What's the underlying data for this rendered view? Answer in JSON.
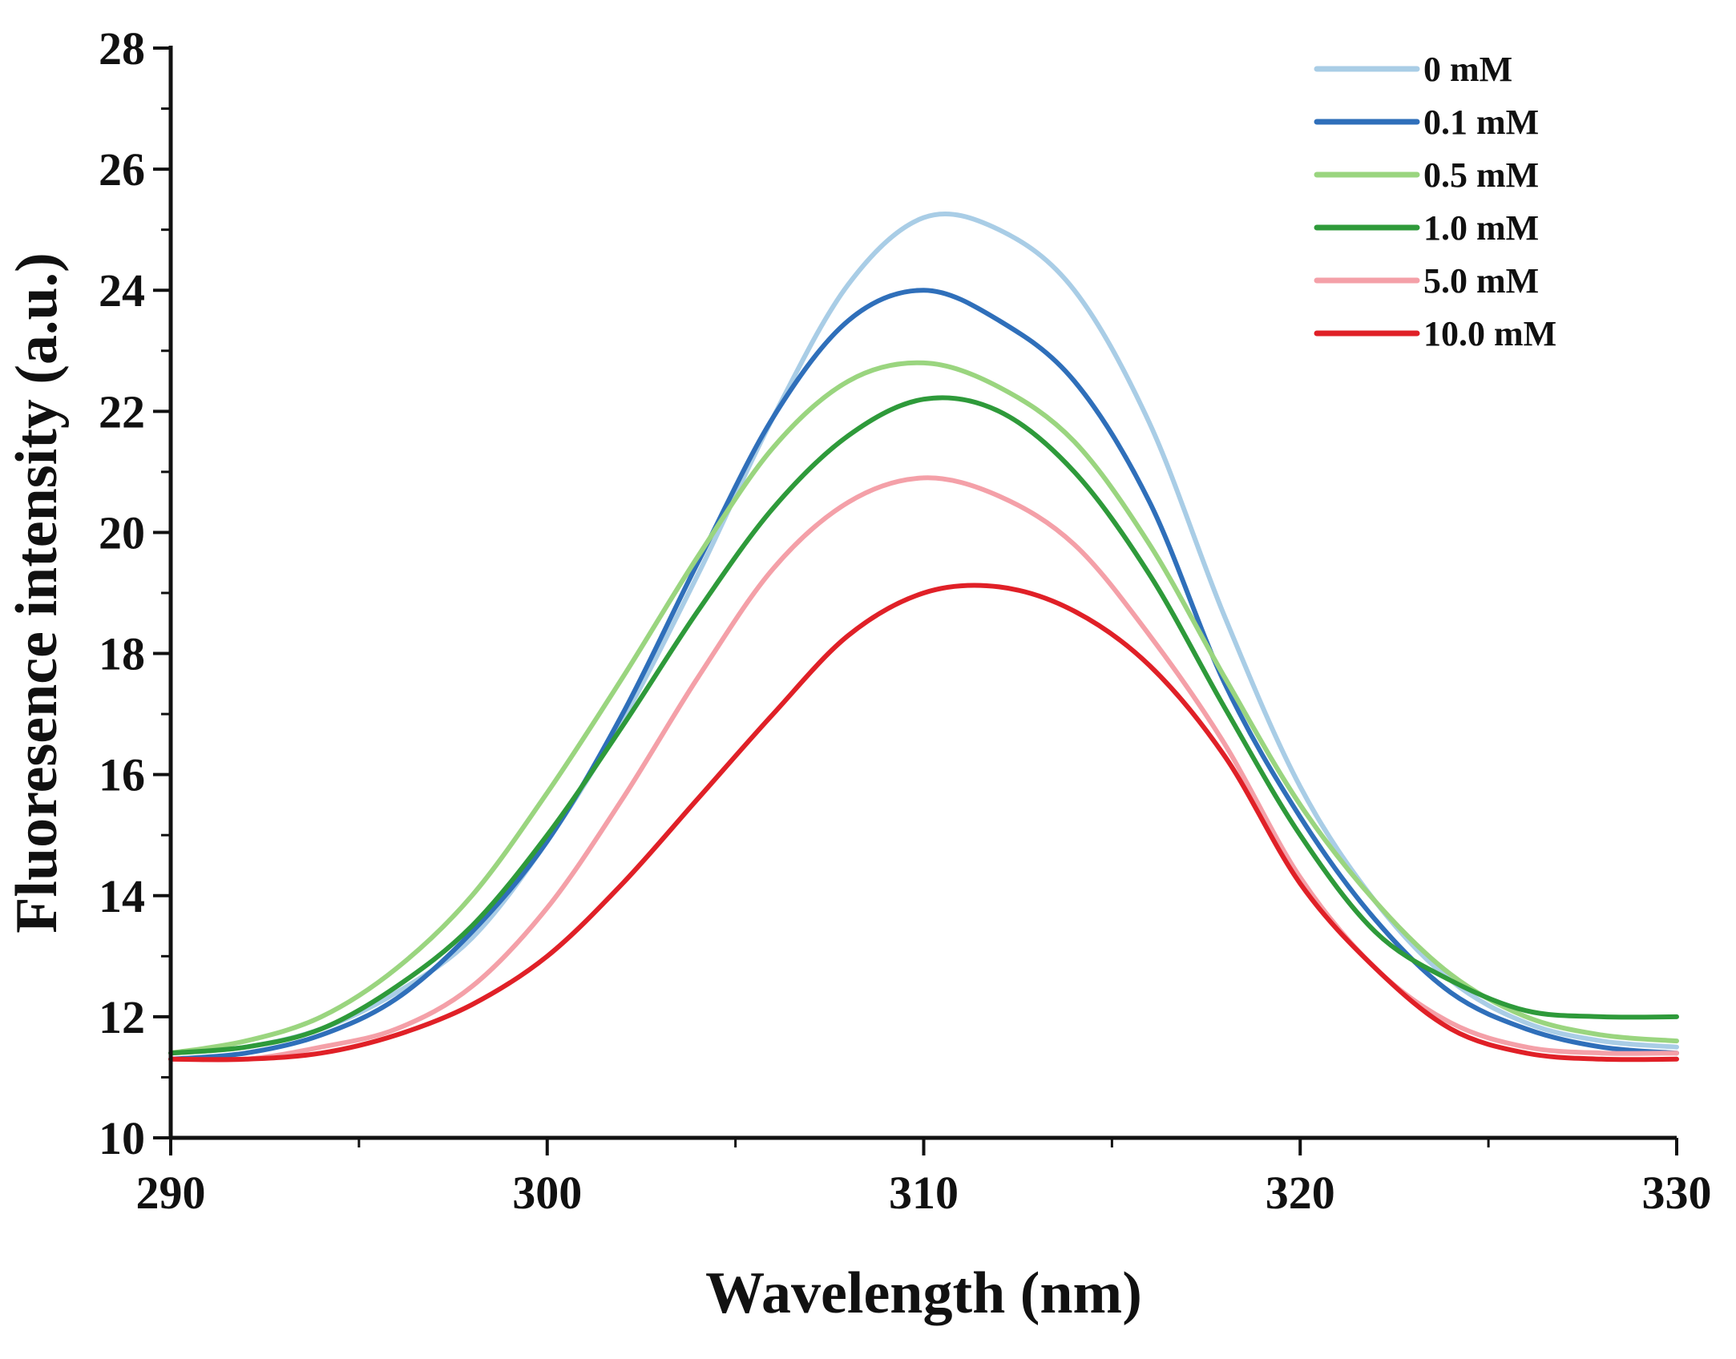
{
  "chart_data": {
    "type": "line",
    "title": "",
    "xlabel": "Wavelength (nm)",
    "ylabel": "Fluoresence intensity (a.u.)",
    "xlim": [
      290,
      330
    ],
    "ylim": [
      10,
      28
    ],
    "x_ticks": [
      290,
      300,
      310,
      320,
      330
    ],
    "y_ticks": [
      10,
      12,
      14,
      16,
      18,
      20,
      22,
      24,
      26,
      28
    ],
    "x_tick_labels": [
      "290",
      "300",
      "310",
      "320",
      "330"
    ],
    "y_tick_labels": [
      "10",
      "12",
      "14",
      "16",
      "18",
      "20",
      "22",
      "24",
      "26",
      "28"
    ],
    "legend_position": "top-right",
    "grid": false,
    "x": [
      290,
      292,
      294,
      296,
      298,
      300,
      302,
      304,
      306,
      308,
      310,
      312,
      314,
      316,
      318,
      320,
      322,
      324,
      326,
      328,
      330
    ],
    "series": [
      {
        "name": "0 mM",
        "color": "#a9cde6",
        "values": [
          11.4,
          11.5,
          11.8,
          12.4,
          13.3,
          14.9,
          16.9,
          19.3,
          21.9,
          24.1,
          25.2,
          25.0,
          24.0,
          21.8,
          18.6,
          15.8,
          13.9,
          12.6,
          11.9,
          11.6,
          11.5
        ]
      },
      {
        "name": "0.1 mM",
        "color": "#2f6fba",
        "values": [
          11.3,
          11.4,
          11.7,
          12.3,
          13.4,
          14.9,
          17.0,
          19.5,
          21.9,
          23.5,
          24.0,
          23.5,
          22.5,
          20.5,
          17.5,
          15.3,
          13.6,
          12.4,
          11.8,
          11.5,
          11.4
        ]
      },
      {
        "name": "0.5 mM",
        "color": "#9ad57f",
        "values": [
          11.4,
          11.6,
          12.0,
          12.8,
          14.0,
          15.7,
          17.6,
          19.6,
          21.4,
          22.5,
          22.8,
          22.4,
          21.5,
          19.8,
          17.6,
          15.5,
          13.9,
          12.7,
          12.0,
          11.7,
          11.6
        ]
      },
      {
        "name": "1.0 mM",
        "color": "#2e9a3a",
        "values": [
          11.4,
          11.5,
          11.8,
          12.5,
          13.5,
          15.0,
          16.8,
          18.7,
          20.4,
          21.6,
          22.2,
          22.0,
          21.0,
          19.3,
          17.1,
          15.0,
          13.4,
          12.6,
          12.1,
          12.0,
          12.0
        ]
      },
      {
        "name": "5.0 mM",
        "color": "#f4a0a8",
        "values": [
          11.3,
          11.3,
          11.5,
          11.8,
          12.5,
          13.8,
          15.6,
          17.6,
          19.4,
          20.5,
          20.9,
          20.6,
          19.8,
          18.3,
          16.5,
          14.3,
          12.8,
          11.9,
          11.5,
          11.4,
          11.4
        ]
      },
      {
        "name": "10.0 mM",
        "color": "#e02027",
        "values": [
          11.3,
          11.3,
          11.4,
          11.7,
          12.2,
          13.0,
          14.2,
          15.6,
          17.0,
          18.3,
          19.0,
          19.1,
          18.7,
          17.8,
          16.3,
          14.2,
          12.8,
          11.8,
          11.4,
          11.3,
          11.3
        ]
      }
    ]
  }
}
